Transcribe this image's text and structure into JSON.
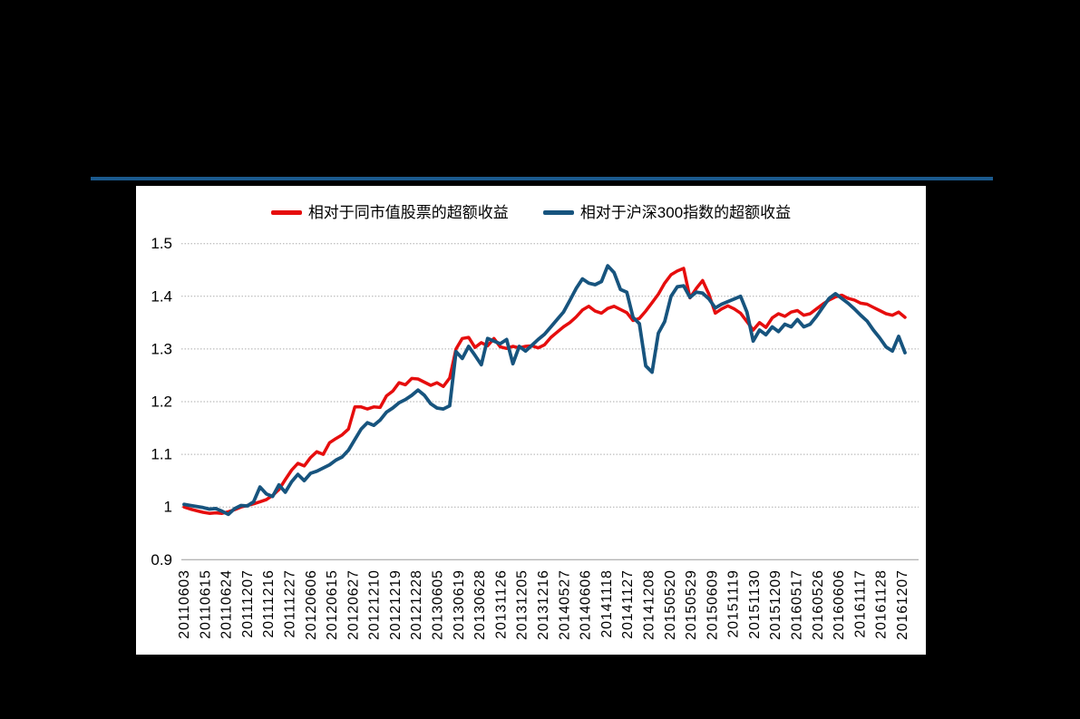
{
  "page": {
    "background": "#000000"
  },
  "divider": {
    "color": "#1b5a8e"
  },
  "legend": {
    "items": [
      {
        "label": "相对于同市值股票的超额收益",
        "color": "#e60d0d"
      },
      {
        "label": "相对于沪深300指数的超额收益",
        "color": "#17547e"
      }
    ]
  },
  "chart_data": {
    "type": "line",
    "title": "",
    "xlabel": "",
    "ylabel": "",
    "ylim": [
      0.9,
      1.5
    ],
    "grid": "horizontal-dotted",
    "legend_position": "top",
    "y_ticks": [
      0.9,
      1.0,
      1.1,
      1.2,
      1.3,
      1.4,
      1.5
    ],
    "y_tick_labels": [
      "0.9",
      "1",
      "1.1",
      "1.2",
      "1.3",
      "1.4",
      "1.5"
    ],
    "x_tick_labels": [
      "20110603",
      "20110615",
      "20110624",
      "20111207",
      "20111216",
      "20111227",
      "20120606",
      "20120615",
      "20120627",
      "20121210",
      "20121219",
      "20121228",
      "20130605",
      "20130619",
      "20130628",
      "20131126",
      "20131205",
      "20131216",
      "20140527",
      "20140606",
      "20141118",
      "20141127",
      "20141208",
      "20150520",
      "20150529",
      "20150609",
      "20151119",
      "20151130",
      "20151209",
      "20160517",
      "20160526",
      "20160606",
      "20161117",
      "20161128",
      "20161207"
    ],
    "series": [
      {
        "name": "相对于同市值股票的超额收益",
        "color": "#e60d0d",
        "values": [
          1.0,
          0.996,
          0.993,
          0.99,
          0.988,
          0.989,
          0.988,
          0.991,
          0.995,
          1.0,
          1.003,
          1.006,
          1.01,
          1.014,
          1.022,
          1.033,
          1.052,
          1.07,
          1.083,
          1.078,
          1.094,
          1.105,
          1.1,
          1.122,
          1.13,
          1.137,
          1.148,
          1.19,
          1.19,
          1.186,
          1.19,
          1.189,
          1.211,
          1.22,
          1.236,
          1.232,
          1.244,
          1.243,
          1.237,
          1.231,
          1.236,
          1.229,
          1.245,
          1.3,
          1.32,
          1.322,
          1.303,
          1.312,
          1.306,
          1.32,
          1.304,
          1.301,
          1.305,
          1.302,
          1.305,
          1.306,
          1.302,
          1.308,
          1.322,
          1.332,
          1.342,
          1.35,
          1.361,
          1.374,
          1.381,
          1.372,
          1.368,
          1.377,
          1.381,
          1.375,
          1.369,
          1.354,
          1.358,
          1.372,
          1.388,
          1.404,
          1.425,
          1.441,
          1.448,
          1.453,
          1.397,
          1.415,
          1.43,
          1.404,
          1.368,
          1.376,
          1.382,
          1.376,
          1.368,
          1.352,
          1.336,
          1.35,
          1.341,
          1.359,
          1.367,
          1.362,
          1.37,
          1.373,
          1.364,
          1.367,
          1.376,
          1.385,
          1.393,
          1.399,
          1.402,
          1.396,
          1.393,
          1.387,
          1.385,
          1.379,
          1.373,
          1.367,
          1.364,
          1.37,
          1.36
        ]
      },
      {
        "name": "相对于沪深300指数的超额收益",
        "color": "#17547e",
        "values": [
          1.005,
          1.003,
          1.001,
          0.999,
          0.996,
          0.997,
          0.992,
          0.986,
          0.997,
          1.003,
          1.002,
          1.01,
          1.038,
          1.025,
          1.02,
          1.042,
          1.028,
          1.048,
          1.062,
          1.05,
          1.064,
          1.068,
          1.074,
          1.08,
          1.089,
          1.095,
          1.108,
          1.128,
          1.148,
          1.16,
          1.155,
          1.165,
          1.18,
          1.188,
          1.198,
          1.204,
          1.212,
          1.222,
          1.212,
          1.196,
          1.188,
          1.186,
          1.192,
          1.295,
          1.282,
          1.305,
          1.288,
          1.27,
          1.32,
          1.315,
          1.31,
          1.318,
          1.272,
          1.305,
          1.296,
          1.307,
          1.318,
          1.328,
          1.342,
          1.356,
          1.37,
          1.392,
          1.415,
          1.433,
          1.425,
          1.422,
          1.428,
          1.458,
          1.445,
          1.413,
          1.408,
          1.36,
          1.348,
          1.268,
          1.256,
          1.33,
          1.352,
          1.4,
          1.418,
          1.42,
          1.398,
          1.408,
          1.406,
          1.395,
          1.378,
          1.385,
          1.39,
          1.395,
          1.4,
          1.37,
          1.315,
          1.336,
          1.327,
          1.342,
          1.333,
          1.347,
          1.342,
          1.356,
          1.342,
          1.347,
          1.362,
          1.379,
          1.396,
          1.405,
          1.396,
          1.387,
          1.376,
          1.364,
          1.353,
          1.336,
          1.321,
          1.304,
          1.296,
          1.324,
          1.293
        ]
      }
    ]
  }
}
